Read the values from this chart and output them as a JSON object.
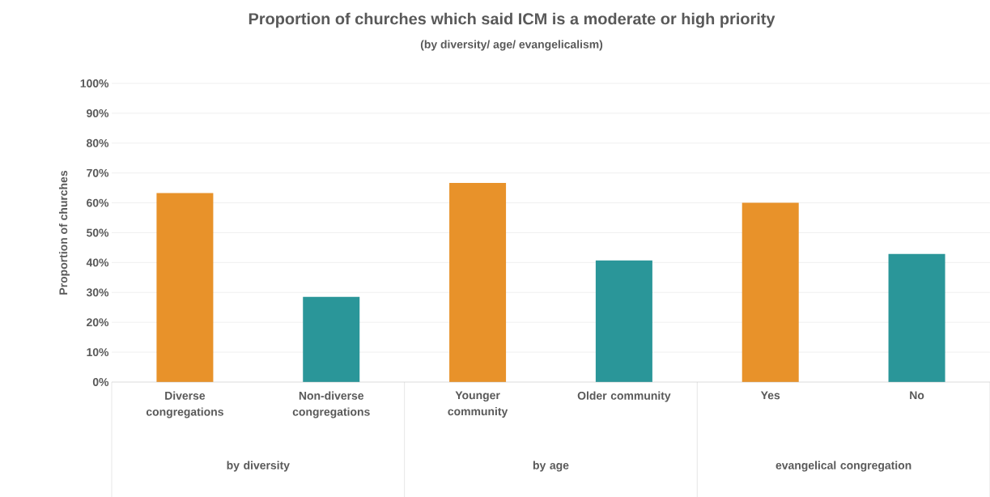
{
  "chart_data": {
    "type": "bar",
    "title": "Proportion of churches which said ICM is a moderate or high priority",
    "subtitle": "(by diversity/ age/ evangelicalism)",
    "ylabel": "Proportion of churches",
    "categories": [
      "Diverse congregations",
      "Non-diverse congregations",
      "Younger community",
      "Older community",
      "Yes",
      "No"
    ],
    "values": [
      63.3,
      28.5,
      66.7,
      40.7,
      60,
      42.9
    ],
    "colors": [
      "#e8922a",
      "#2a9699",
      "#e8922a",
      "#2a9699",
      "#e8922a",
      "#2a9699"
    ],
    "annotations": [
      "by diversity",
      "by age",
      "evangelical congregation"
    ],
    "ylim": [
      0,
      100
    ],
    "yticks": [
      {
        "value": 0,
        "label": "0%"
      },
      {
        "value": 10,
        "label": "10%"
      },
      {
        "value": 20,
        "label": "20%"
      },
      {
        "value": 30,
        "label": "30%"
      },
      {
        "value": 40,
        "label": "40%"
      },
      {
        "value": 50,
        "label": "50%"
      },
      {
        "value": 60,
        "label": "60%"
      },
      {
        "value": 70,
        "label": "70%"
      },
      {
        "value": 80,
        "label": "80%"
      },
      {
        "value": 90,
        "label": "90%"
      },
      {
        "value": 100,
        "label": "100%"
      }
    ],
    "grid": "y"
  }
}
